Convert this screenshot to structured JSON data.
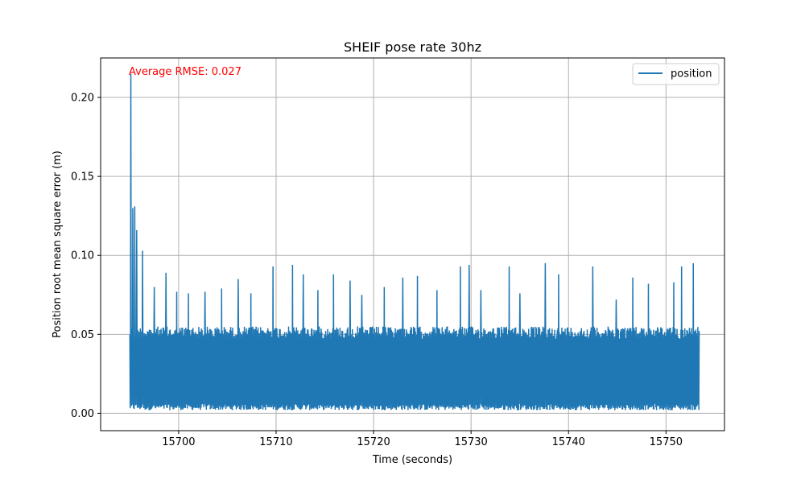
{
  "chart_data": {
    "type": "line",
    "title": "SHEIF pose rate 30hz",
    "xlabel": "Time (seconds)",
    "ylabel": "Position root mean square error (m)",
    "xlim": [
      15692.0,
      15756.0
    ],
    "ylim": [
      -0.011,
      0.225
    ],
    "xticks": [
      15700,
      15710,
      15720,
      15730,
      15740,
      15750
    ],
    "yticks": [
      0.0,
      0.05,
      0.1,
      0.15,
      0.2
    ],
    "ytick_labels": [
      "0.00",
      "0.05",
      "0.10",
      "0.15",
      "0.20"
    ],
    "grid": true,
    "legend_position": "top-right",
    "annotation": {
      "text": "Average RMSE: 0.027",
      "color": "#ff0000",
      "position": "top-left"
    },
    "series": [
      {
        "name": "position",
        "color": "#1f77b4",
        "x_start": 15695.0,
        "x_end": 15753.4,
        "band_min": 0.002,
        "band_max": 0.055,
        "spikes": [
          {
            "x": 15695.1,
            "y": 0.215
          },
          {
            "x": 15695.3,
            "y": 0.13
          },
          {
            "x": 15695.5,
            "y": 0.131
          },
          {
            "x": 15695.7,
            "y": 0.116
          },
          {
            "x": 15696.3,
            "y": 0.103
          },
          {
            "x": 15697.5,
            "y": 0.08
          },
          {
            "x": 15698.7,
            "y": 0.089
          },
          {
            "x": 15699.8,
            "y": 0.077
          },
          {
            "x": 15701.0,
            "y": 0.076
          },
          {
            "x": 15702.7,
            "y": 0.077
          },
          {
            "x": 15704.4,
            "y": 0.079
          },
          {
            "x": 15706.1,
            "y": 0.085
          },
          {
            "x": 15707.4,
            "y": 0.076
          },
          {
            "x": 15709.7,
            "y": 0.093
          },
          {
            "x": 15711.7,
            "y": 0.094
          },
          {
            "x": 15712.8,
            "y": 0.088
          },
          {
            "x": 15714.3,
            "y": 0.078
          },
          {
            "x": 15715.9,
            "y": 0.088
          },
          {
            "x": 15717.6,
            "y": 0.084
          },
          {
            "x": 15718.8,
            "y": 0.075
          },
          {
            "x": 15721.1,
            "y": 0.08
          },
          {
            "x": 15723.0,
            "y": 0.086
          },
          {
            "x": 15724.5,
            "y": 0.087
          },
          {
            "x": 15726.5,
            "y": 0.078
          },
          {
            "x": 15728.9,
            "y": 0.093
          },
          {
            "x": 15729.8,
            "y": 0.094
          },
          {
            "x": 15731.0,
            "y": 0.078
          },
          {
            "x": 15733.9,
            "y": 0.093
          },
          {
            "x": 15735.0,
            "y": 0.076
          },
          {
            "x": 15737.6,
            "y": 0.095
          },
          {
            "x": 15739.0,
            "y": 0.088
          },
          {
            "x": 15742.5,
            "y": 0.093
          },
          {
            "x": 15744.9,
            "y": 0.072
          },
          {
            "x": 15746.6,
            "y": 0.086
          },
          {
            "x": 15748.2,
            "y": 0.082
          },
          {
            "x": 15750.8,
            "y": 0.083
          },
          {
            "x": 15751.6,
            "y": 0.093
          },
          {
            "x": 15752.8,
            "y": 0.095
          }
        ]
      }
    ]
  }
}
